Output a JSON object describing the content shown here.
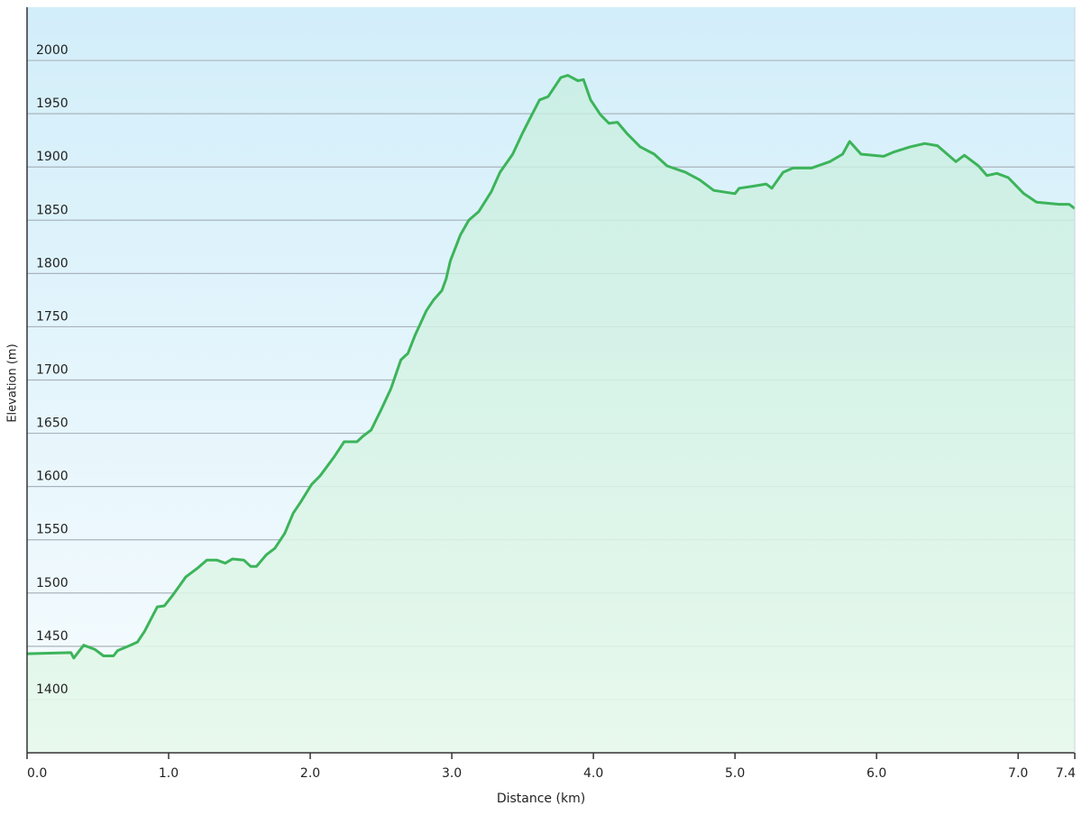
{
  "chart_data": {
    "type": "area",
    "x_label": "Distance  (km)",
    "y_label": "Elevation (m)",
    "color": "#3cb45a",
    "grid": true,
    "xlim": [
      0,
      7.4
    ],
    "ylim": [
      1350,
      2050
    ],
    "xticks": [
      {
        "value": 0,
        "label": "0.0"
      },
      {
        "value": 1,
        "label": "1.0"
      },
      {
        "value": 2,
        "label": "2.0"
      },
      {
        "value": 3,
        "label": "3.0"
      },
      {
        "value": 4,
        "label": "4.0"
      },
      {
        "value": 5,
        "label": "5.0"
      },
      {
        "value": 6,
        "label": "6.0"
      },
      {
        "value": 7,
        "label": "7.0"
      },
      7.4
    ],
    "yticks": [
      1400,
      1450,
      1500,
      1550,
      1600,
      1650,
      1700,
      1750,
      1800,
      1850,
      1900,
      1950,
      2000
    ],
    "x": [
      0,
      0.31,
      0.33,
      0.4,
      0.48,
      0.54,
      0.61,
      0.64,
      0.73,
      0.78,
      0.83,
      0.92,
      0.97,
      1.03,
      1.12,
      1.21,
      1.27,
      1.34,
      1.4,
      1.45,
      1.53,
      1.58,
      1.62,
      1.69,
      1.75,
      1.82,
      1.88,
      1.93,
      2.01,
      2.07,
      2.17,
      2.24,
      2.33,
      2.37,
      2.43,
      2.5,
      2.57,
      2.64,
      2.69,
      2.74,
      2.82,
      2.87,
      2.93,
      2.96,
      2.99,
      3.06,
      3.12,
      3.19,
      3.28,
      3.34,
      3.43,
      3.5,
      3.55,
      3.62,
      3.68,
      3.77,
      3.82,
      3.89,
      3.93,
      3.98,
      4.05,
      4.11,
      4.17,
      4.24,
      4.33,
      4.43,
      4.52,
      4.65,
      4.75,
      4.85,
      5.0,
      5.03,
      5.13,
      5.22,
      5.26,
      5.34,
      5.41,
      5.54,
      5.67,
      5.76,
      5.81,
      5.89,
      6.05,
      6.12,
      6.24,
      6.34,
      6.43,
      6.56,
      6.62,
      6.72,
      6.78,
      6.85,
      6.93,
      7.04,
      7.13,
      7.29,
      7.36,
      7.4
    ],
    "values": [
      1443,
      1444,
      1439,
      1451,
      1447,
      1441,
      1441,
      1446,
      1451,
      1454,
      1464,
      1487,
      1488,
      1498,
      1515,
      1524,
      1531,
      1531,
      1528,
      1532,
      1531,
      1525,
      1525,
      1536,
      1542,
      1556,
      1575,
      1585,
      1602,
      1610,
      1628,
      1642,
      1642,
      1647,
      1653,
      1672,
      1692,
      1719,
      1725,
      1742,
      1765,
      1775,
      1784,
      1795,
      1812,
      1836,
      1850,
      1858,
      1877,
      1895,
      1912,
      1932,
      1945,
      1963,
      1966,
      1984,
      1986,
      1981,
      1982,
      1963,
      1949,
      1941,
      1942,
      1931,
      1919,
      1912,
      1901,
      1895,
      1888,
      1878,
      1875,
      1880,
      1882,
      1884,
      1880,
      1895,
      1899,
      1899,
      1905,
      1912,
      1924,
      1912,
      1910,
      1914,
      1919,
      1922,
      1920,
      1905,
      1911,
      1901,
      1892,
      1894,
      1890,
      1875,
      1867,
      1865,
      1865,
      1861
    ]
  }
}
